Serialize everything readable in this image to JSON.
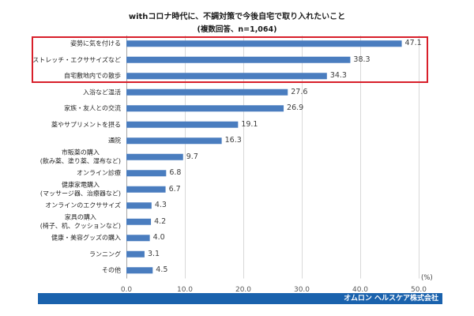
{
  "chart_data": {
    "type": "bar",
    "orientation": "horizontal",
    "title": "withコロナ時代に、不調対策で今後自宅で取り入れたいこと",
    "subtitle": "(複数回答、n=1,064)",
    "unit_label": "(%)",
    "categories": [
      "姿勢に気を付ける",
      "ストレッチ・エクササイズなど",
      "自宅敷地内での散歩",
      "入浴など温活",
      "家族・友人との交流",
      "薬やサプリメントを摂る",
      "通院",
      "市販薬の購入\n(飲み薬、塗り薬、湿布など)",
      "オンライン診療",
      "健康家電購入\n(マッサージ器、治療器など)",
      "オンラインのエクササイズ",
      "家具の購入\n(椅子、机、クッションなど)",
      "健康・美容グッズの購入",
      "ランニング",
      "その他"
    ],
    "values": [
      47.1,
      38.3,
      34.3,
      27.6,
      26.9,
      19.1,
      16.3,
      9.7,
      6.8,
      6.7,
      4.3,
      4.2,
      4.0,
      3.1,
      4.5
    ],
    "data_labels": [
      "47.1",
      "38.3",
      "34.3",
      "27.6",
      "26.9",
      "19.1",
      "16.3",
      "9.7",
      "6.8",
      "6.7",
      "4.3",
      "4.2",
      "4.0",
      "3.1",
      "4.5"
    ],
    "x_ticks": [
      "0.0",
      "10.0",
      "20.0",
      "30.0",
      "40.0",
      "50.0"
    ],
    "xlim": [
      0,
      50
    ],
    "grid": true,
    "legend": "none",
    "bar_color": "#4a7dbf",
    "highlight_color": "#d81f2a"
  },
  "footer": {
    "text": "オムロン ヘルスケア株式会社",
    "color": "#1a62ad"
  }
}
